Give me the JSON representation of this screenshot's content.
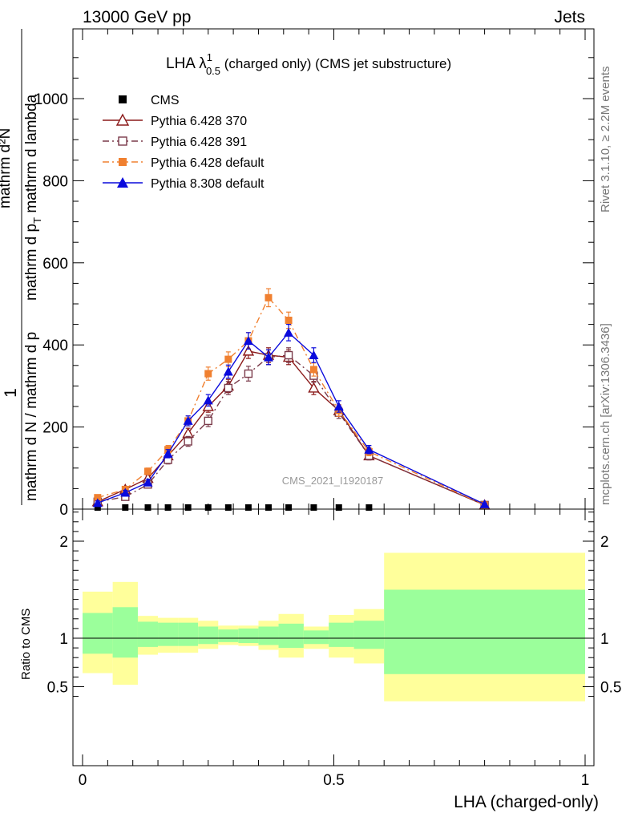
{
  "header": {
    "left": "13000 GeV pp",
    "right": "Jets"
  },
  "side_labels": {
    "rivet": "Rivet 3.1.10, ≥ 2.2M events",
    "mcplots": "mcplots.cern.ch [arXiv:1306.3436]"
  },
  "chart_data": [
    {
      "type": "line",
      "title_main": "LHA λ",
      "title_sup": "1",
      "title_sub": "0.5",
      "title_rest": " (charged only) (CMS jet substructure)",
      "ylabel_num": "1",
      "ylabel_den": "mathrm d N / mathrm d p",
      "ylabel_num_expr": "mathrm d²N",
      "ylabel_den_expr": "mathrm d p",
      "ylabel_den_sub": "T",
      "ylabel_den_rest": " mathrm d lambda",
      "watermark": "CMS_2021_I1920187",
      "xlim": [
        0,
        1
      ],
      "ylim": [
        0,
        1000
      ],
      "yticks": [
        0,
        200,
        400,
        600,
        800,
        1000
      ],
      "ytick_labels": [
        "0",
        "200",
        "400",
        "600",
        "800",
        "1000"
      ],
      "legend_position": "top-left",
      "series": [
        {
          "name": "CMS",
          "color": "#000000",
          "marker": "square-filled",
          "line": "none",
          "x": [
            0.03,
            0.085,
            0.13,
            0.17,
            0.21,
            0.25,
            0.29,
            0.33,
            0.37,
            0.41,
            0.46,
            0.51,
            0.57
          ],
          "y": [
            1,
            1,
            1,
            1,
            1,
            1,
            1,
            1,
            1,
            1,
            1,
            1,
            1
          ]
        },
        {
          "name": "Pythia 6.428 370",
          "color": "#8b1a1a",
          "marker": "triangle-open",
          "line": "solid",
          "x": [
            0.03,
            0.085,
            0.13,
            0.17,
            0.21,
            0.25,
            0.29,
            0.33,
            0.37,
            0.41,
            0.46,
            0.51,
            0.57,
            0.8
          ],
          "y": [
            18,
            48,
            75,
            130,
            185,
            250,
            300,
            385,
            375,
            370,
            295,
            240,
            130,
            10
          ],
          "err": [
            5,
            6,
            8,
            10,
            12,
            14,
            16,
            18,
            18,
            18,
            16,
            14,
            10,
            3
          ]
        },
        {
          "name": "Pythia 6.428 391",
          "color": "#7a3a4a",
          "marker": "square-open",
          "line": "dashdot",
          "x": [
            0.03,
            0.085,
            0.13,
            0.17,
            0.21,
            0.25,
            0.29,
            0.33,
            0.37,
            0.41,
            0.46,
            0.51,
            0.57,
            0.8
          ],
          "y": [
            18,
            30,
            60,
            120,
            165,
            215,
            295,
            330,
            370,
            375,
            325,
            235,
            130,
            10
          ],
          "err": [
            5,
            6,
            8,
            10,
            12,
            14,
            16,
            18,
            18,
            18,
            16,
            14,
            10,
            3
          ]
        },
        {
          "name": "Pythia 6.428 default",
          "color": "#f08030",
          "marker": "square-filled",
          "line": "dashdot",
          "x": [
            0.03,
            0.085,
            0.13,
            0.17,
            0.21,
            0.25,
            0.29,
            0.33,
            0.37,
            0.41,
            0.46,
            0.51,
            0.57,
            0.8
          ],
          "y": [
            28,
            48,
            92,
            145,
            215,
            330,
            365,
            410,
            515,
            460,
            340,
            240,
            140,
            10
          ],
          "err": [
            5,
            6,
            8,
            10,
            12,
            16,
            18,
            20,
            22,
            20,
            16,
            14,
            10,
            3
          ]
        },
        {
          "name": "Pythia 8.308 default",
          "color": "#0a0adc",
          "marker": "triangle-filled",
          "line": "solid",
          "x": [
            0.03,
            0.085,
            0.13,
            0.17,
            0.21,
            0.25,
            0.29,
            0.33,
            0.37,
            0.41,
            0.46,
            0.51,
            0.57,
            0.8
          ],
          "y": [
            15,
            40,
            65,
            135,
            215,
            265,
            335,
            410,
            370,
            430,
            375,
            250,
            145,
            12
          ],
          "err": [
            5,
            6,
            8,
            10,
            12,
            14,
            16,
            20,
            18,
            20,
            18,
            14,
            10,
            3
          ]
        }
      ]
    },
    {
      "type": "area",
      "ylabel": "Ratio to CMS",
      "xlabel": "LHA (charged-only)",
      "xlim": [
        -0.02,
        1.0
      ],
      "ylim": [
        0.35,
        2.35
      ],
      "yticks": [
        0.5,
        1,
        2
      ],
      "ytick_labels": [
        "0.5",
        "1",
        "2"
      ],
      "xticks": [
        0,
        0.5,
        1
      ],
      "xtick_labels": [
        "0",
        "0.5",
        "1"
      ],
      "reference_line": 1,
      "bins": [
        {
          "x0": 0.0,
          "x1": 0.06,
          "stat_lo": 0.84,
          "stat_hi": 1.26,
          "tot_lo": 0.64,
          "tot_hi": 1.48
        },
        {
          "x0": 0.06,
          "x1": 0.11,
          "stat_lo": 0.8,
          "stat_hi": 1.32,
          "tot_lo": 0.52,
          "tot_hi": 1.58
        },
        {
          "x0": 0.11,
          "x1": 0.15,
          "stat_lo": 0.91,
          "stat_hi": 1.17,
          "tot_lo": 0.83,
          "tot_hi": 1.23
        },
        {
          "x0": 0.15,
          "x1": 0.19,
          "stat_lo": 0.92,
          "stat_hi": 1.16,
          "tot_lo": 0.85,
          "tot_hi": 1.21
        },
        {
          "x0": 0.19,
          "x1": 0.23,
          "stat_lo": 0.92,
          "stat_hi": 1.16,
          "tot_lo": 0.85,
          "tot_hi": 1.21
        },
        {
          "x0": 0.23,
          "x1": 0.27,
          "stat_lo": 0.94,
          "stat_hi": 1.12,
          "tot_lo": 0.89,
          "tot_hi": 1.18
        },
        {
          "x0": 0.27,
          "x1": 0.31,
          "stat_lo": 0.96,
          "stat_hi": 1.09,
          "tot_lo": 0.93,
          "tot_hi": 1.13
        },
        {
          "x0": 0.31,
          "x1": 0.35,
          "stat_lo": 0.95,
          "stat_hi": 1.1,
          "tot_lo": 0.92,
          "tot_hi": 1.13
        },
        {
          "x0": 0.35,
          "x1": 0.39,
          "stat_lo": 0.93,
          "stat_hi": 1.12,
          "tot_lo": 0.88,
          "tot_hi": 1.18
        },
        {
          "x0": 0.39,
          "x1": 0.44,
          "stat_lo": 0.9,
          "stat_hi": 1.15,
          "tot_lo": 0.8,
          "tot_hi": 1.25
        },
        {
          "x0": 0.44,
          "x1": 0.49,
          "stat_lo": 0.94,
          "stat_hi": 1.08,
          "tot_lo": 0.89,
          "tot_hi": 1.12
        },
        {
          "x0": 0.49,
          "x1": 0.54,
          "stat_lo": 0.91,
          "stat_hi": 1.16,
          "tot_lo": 0.8,
          "tot_hi": 1.24
        },
        {
          "x0": 0.54,
          "x1": 0.6,
          "stat_lo": 0.89,
          "stat_hi": 1.18,
          "tot_lo": 0.74,
          "tot_hi": 1.3
        },
        {
          "x0": 0.6,
          "x1": 1.0,
          "stat_lo": 0.63,
          "stat_hi": 1.5,
          "tot_lo": 0.35,
          "tot_hi": 1.88
        }
      ],
      "colors": {
        "stat": "#9bff9b",
        "total": "#ffff9b"
      }
    }
  ]
}
